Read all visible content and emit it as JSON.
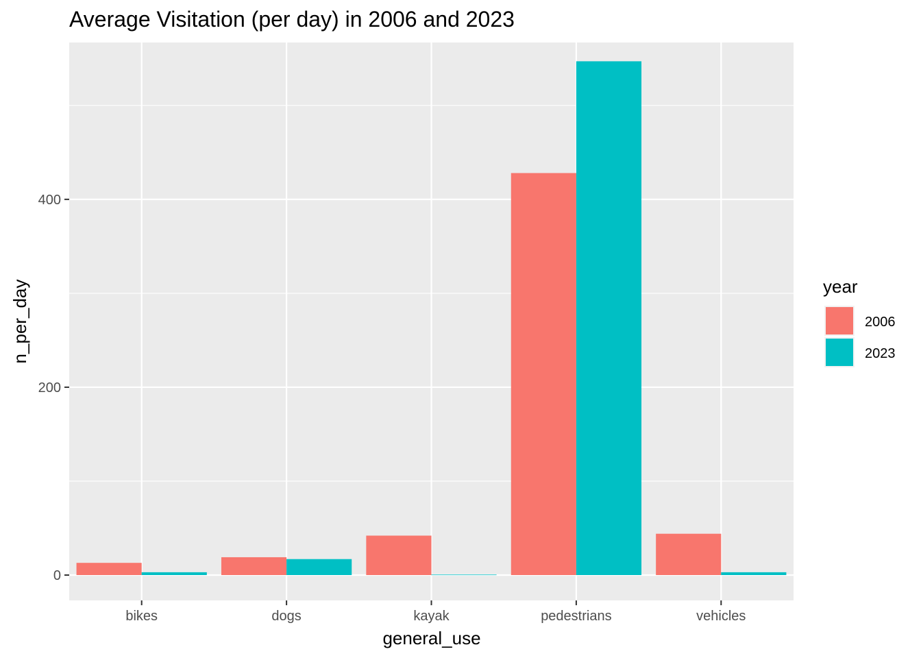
{
  "chart_data": {
    "type": "bar",
    "title": "Average Visitation (per day) in 2006 and 2023",
    "xlabel": "general_use",
    "ylabel": "n_per_day",
    "categories": [
      "bikes",
      "dogs",
      "kayak",
      "pedestrians",
      "vehicles"
    ],
    "series": [
      {
        "name": "2006",
        "color": "#F8766D",
        "values": [
          13,
          19,
          42,
          428,
          44
        ]
      },
      {
        "name": "2023",
        "color": "#00BFC4",
        "values": [
          3,
          17,
          0.5,
          547,
          3
        ]
      }
    ],
    "ylim": [
      -27,
      567
    ],
    "yticks": [
      0,
      200,
      400
    ],
    "grid": true,
    "legend": {
      "title": "year",
      "position": "right"
    },
    "colors": {
      "panel_background": "#EBEBEB",
      "gridline": "#FFFFFF",
      "tick_text": "#4D4D4D"
    }
  }
}
